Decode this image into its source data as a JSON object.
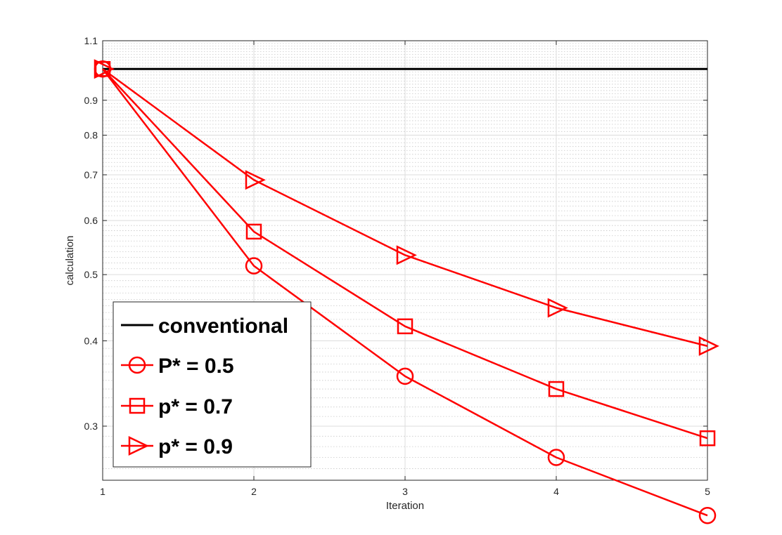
{
  "chart_data": {
    "type": "line",
    "title": "",
    "xlabel": "Iteration",
    "ylabel": "calculation",
    "x": [
      1,
      2,
      3,
      4,
      5
    ],
    "xlim": [
      1,
      5
    ],
    "ylim": [
      0.25,
      1.1
    ],
    "yscale": "log",
    "grid": true,
    "minor_grid": true,
    "xticks": [
      "1",
      "2",
      "3",
      "4",
      "5"
    ],
    "yticks": [
      {
        "v": 0.3,
        "label": "0.3"
      },
      {
        "v": 0.4,
        "label": "0.4"
      },
      {
        "v": 0.5,
        "label": "0.5"
      },
      {
        "v": 0.6,
        "label": "0.6"
      },
      {
        "v": 0.7,
        "label": "0.7"
      },
      {
        "v": 0.8,
        "label": "0.8"
      },
      {
        "v": 0.9,
        "label": "0.9"
      },
      {
        "v": 1.1,
        "label": "1.1"
      }
    ],
    "legend_position": "bottom-left",
    "series": [
      {
        "name": "conventional",
        "color": "#000000",
        "marker": "none",
        "values": [
          1.0,
          1.0,
          1.0,
          1.0,
          1.0
        ]
      },
      {
        "name": "P* = 0.5",
        "color": "#ff0000",
        "marker": "circle",
        "values": [
          1.0,
          0.515,
          0.355,
          0.27,
          0.222
        ]
      },
      {
        "name": "p* = 0.7",
        "color": "#ff0000",
        "marker": "square",
        "values": [
          1.0,
          0.578,
          0.42,
          0.34,
          0.288
        ]
      },
      {
        "name": "p* = 0.9",
        "color": "#ff0000",
        "marker": "triangle-right",
        "values": [
          1.0,
          0.688,
          0.534,
          0.447,
          0.393
        ]
      }
    ]
  }
}
